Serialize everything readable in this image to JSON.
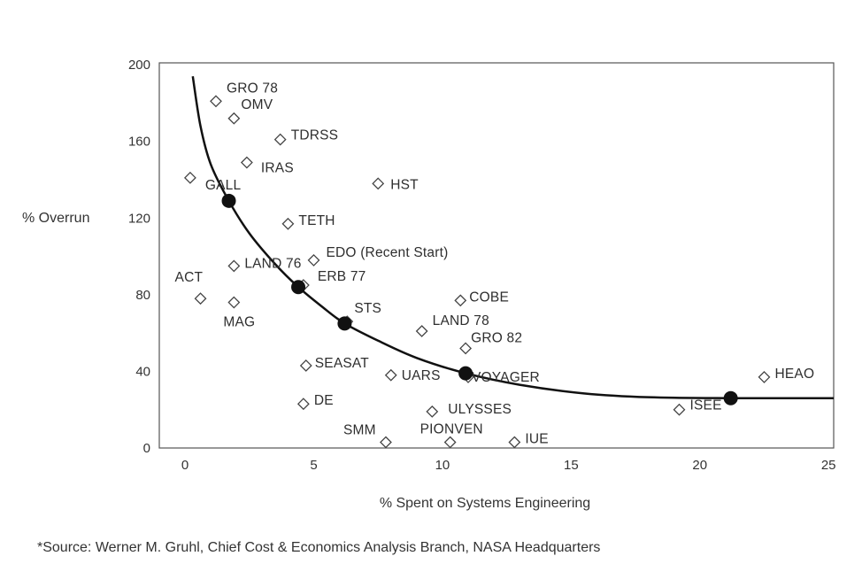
{
  "chart_data": {
    "type": "scatter",
    "xlabel": "% Spent on Systems Engineering",
    "ylabel": "% Overrun",
    "xlim": [
      -1,
      25.2
    ],
    "ylim": [
      0,
      201
    ],
    "x_ticks": [
      0,
      5,
      10,
      15,
      20,
      25
    ],
    "y_ticks": [
      0,
      40,
      80,
      120,
      160,
      200
    ],
    "grid": false,
    "projects": [
      {
        "label": "GRO 78",
        "x": 1.2,
        "y": 181
      },
      {
        "label": "OMV",
        "x": 1.9,
        "y": 172
      },
      {
        "label": "TDRSS",
        "x": 3.7,
        "y": 161
      },
      {
        "label": "IRAS",
        "x": 2.4,
        "y": 149
      },
      {
        "label": "GALL",
        "x": 0.2,
        "y": 141
      },
      {
        "label": "HST",
        "x": 7.5,
        "y": 138
      },
      {
        "label": "TETH",
        "x": 4.0,
        "y": 117
      },
      {
        "label": "EDO (Recent Start)",
        "x": 5.0,
        "y": 98
      },
      {
        "label": "LAND 76",
        "x": 1.9,
        "y": 95
      },
      {
        "label": "ERB 77",
        "x": 4.6,
        "y": 85
      },
      {
        "label": "ACT",
        "x": 0.6,
        "y": 78
      },
      {
        "label": "MAG",
        "x": 1.9,
        "y": 76
      },
      {
        "label": "COBE",
        "x": 10.7,
        "y": 77
      },
      {
        "label": "STS",
        "x": 6.3,
        "y": 66
      },
      {
        "label": "LAND 78",
        "x": 9.2,
        "y": 61
      },
      {
        "label": "GRO 82",
        "x": 10.9,
        "y": 52
      },
      {
        "label": "SEASAT",
        "x": 4.7,
        "y": 43
      },
      {
        "label": "UARS",
        "x": 8.0,
        "y": 38
      },
      {
        "label": "VOYAGER",
        "x": 11.0,
        "y": 37
      },
      {
        "label": "HEAO",
        "x": 22.5,
        "y": 37
      },
      {
        "label": "DE",
        "x": 4.6,
        "y": 23
      },
      {
        "label": "ULYSSES",
        "x": 9.6,
        "y": 19
      },
      {
        "label": "ISEE",
        "x": 19.2,
        "y": 20
      },
      {
        "label": "SMM",
        "x": 7.8,
        "y": 3
      },
      {
        "label": "PIONVEN",
        "x": 10.3,
        "y": 3
      },
      {
        "label": "IUE",
        "x": 12.8,
        "y": 3
      }
    ],
    "trend_points": [
      {
        "x": 1.7,
        "y": 129
      },
      {
        "x": 4.4,
        "y": 84
      },
      {
        "x": 6.2,
        "y": 65
      },
      {
        "x": 10.9,
        "y": 39
      },
      {
        "x": 21.2,
        "y": 26
      }
    ],
    "trend_curve": [
      {
        "x": 0.3,
        "y": 194
      },
      {
        "x": 0.6,
        "y": 168
      },
      {
        "x": 1.0,
        "y": 148
      },
      {
        "x": 1.7,
        "y": 129
      },
      {
        "x": 2.5,
        "y": 112
      },
      {
        "x": 3.5,
        "y": 96
      },
      {
        "x": 4.4,
        "y": 84
      },
      {
        "x": 5.3,
        "y": 74
      },
      {
        "x": 6.2,
        "y": 65
      },
      {
        "x": 7.5,
        "y": 56
      },
      {
        "x": 9.0,
        "y": 47
      },
      {
        "x": 10.9,
        "y": 39
      },
      {
        "x": 13.0,
        "y": 33
      },
      {
        "x": 15.5,
        "y": 28.5
      },
      {
        "x": 18.0,
        "y": 26.5
      },
      {
        "x": 21.2,
        "y": 26
      },
      {
        "x": 25.2,
        "y": 26
      }
    ]
  },
  "source_note": "*Source: Werner M. Gruhl, Chief Cost & Economics Analysis Branch, NASA Headquarters"
}
